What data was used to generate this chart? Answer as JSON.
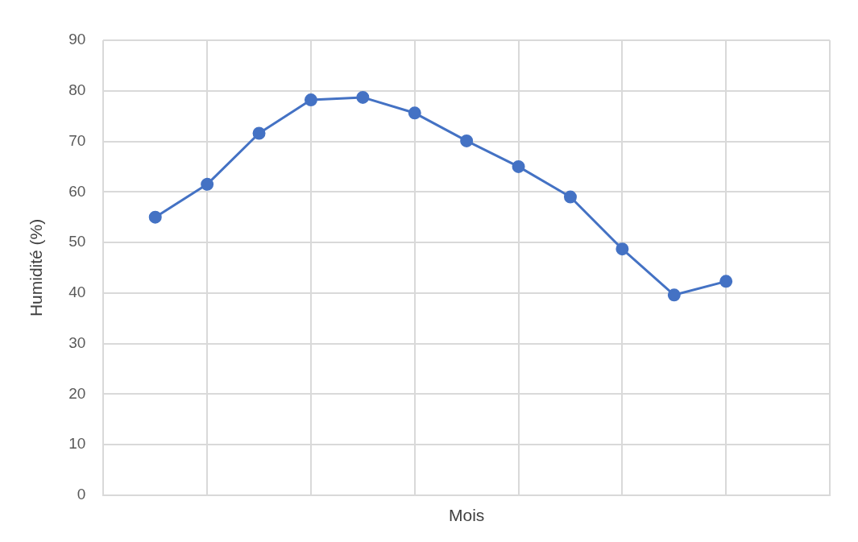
{
  "chart_data": {
    "type": "line",
    "xlabel": "Mois",
    "ylabel": "Humidité (%)",
    "categories": [
      null,
      null,
      null,
      null,
      null,
      null,
      null,
      null,
      null,
      null,
      null,
      null
    ],
    "series": [
      {
        "color": "#4472c4",
        "values": [
          55,
          61.5,
          71.6,
          78.2,
          78.7,
          75.6,
          70.1,
          65,
          59,
          48.7,
          39.6,
          42.3
        ]
      }
    ],
    "ylim": [
      0,
      90
    ],
    "yticks": [
      0,
      10,
      20,
      30,
      40,
      50,
      60,
      70,
      80,
      90
    ],
    "grid": true,
    "tick_labels": "y",
    "marker": "circle",
    "line_style": "solid",
    "legend": false
  }
}
